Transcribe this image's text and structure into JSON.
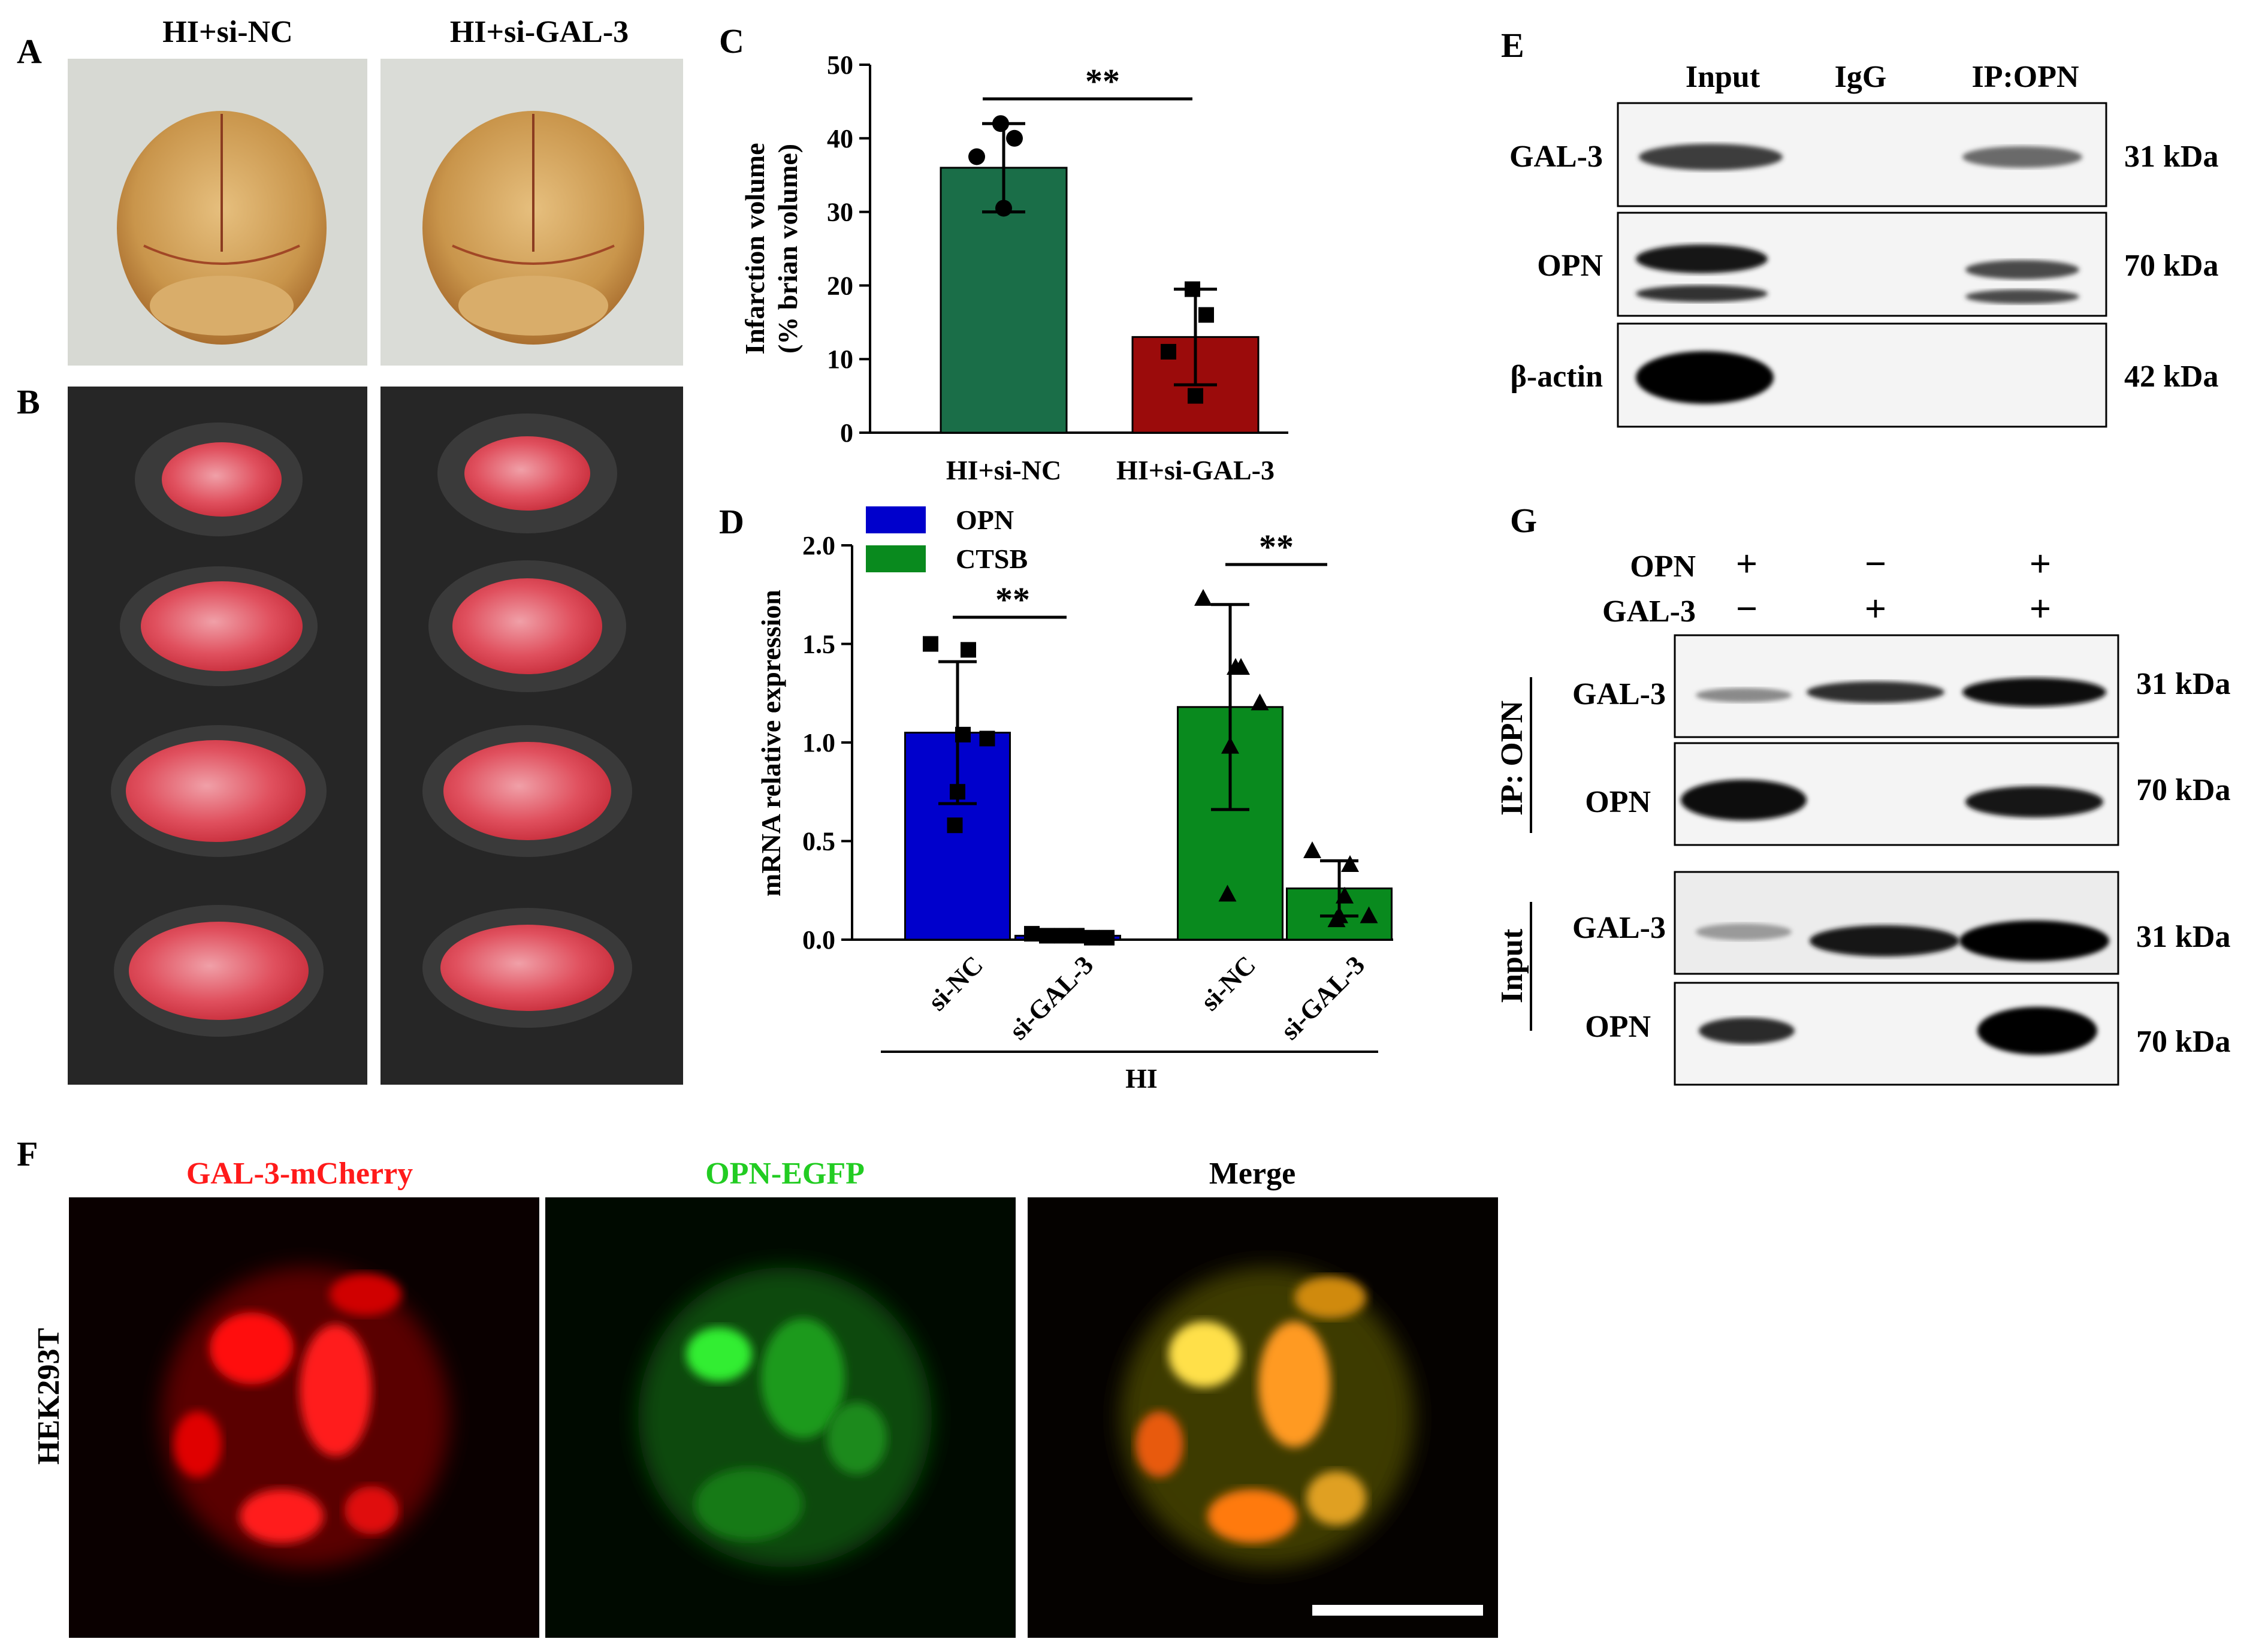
{
  "panel_letters": {
    "a": "A",
    "b": "B",
    "c": "C",
    "d": "D",
    "e": "E",
    "f": "F",
    "g": "G"
  },
  "panel_a": {
    "col1": "HI+si-NC",
    "col2": "HI+si-GAL-3"
  },
  "chart_data": [
    {
      "panel": "C",
      "type": "bar",
      "categories": [
        "HI+si-NC",
        "HI+si-GAL-3"
      ],
      "values": [
        36,
        13
      ],
      "error": [
        6,
        6.5
      ],
      "points": [
        [
          42,
          40,
          37.5,
          30.5
        ],
        [
          19.5,
          16,
          11,
          5
        ]
      ],
      "colors": [
        "#1a6e48",
        "#9b0b0b"
      ],
      "ylabel_line1": "Infarction  volume",
      "ylabel_line2": "(% brian volume)",
      "ylim": [
        0,
        50
      ],
      "yticks": [
        "0",
        "10",
        "20",
        "30",
        "40",
        "50"
      ],
      "significance": "**"
    },
    {
      "panel": "D",
      "type": "bar",
      "categories": [
        "si-NC",
        "si-GAL-3",
        "si-NC",
        "si-GAL-3"
      ],
      "values": [
        1.05,
        0.02,
        1.18,
        0.26
      ],
      "error": [
        0.36,
        0.01,
        0.52,
        0.14
      ],
      "series": [
        {
          "name": "OPN",
          "color": "#0000cc"
        },
        {
          "name": "CTSB",
          "color": "#098a1e"
        }
      ],
      "points": [
        [
          1.5,
          1.47,
          1.04,
          1.02,
          0.75,
          0.58
        ],
        [
          0.03,
          0.02,
          0.02,
          0.02,
          0.01,
          0.01
        ],
        [
          1.73,
          1.38,
          1.38,
          1.2,
          0.98,
          0.23
        ],
        [
          0.45,
          0.38,
          0.22,
          0.12,
          0.12,
          0.1
        ]
      ],
      "ylabel": "mRNA relative expression",
      "ylim": [
        0,
        2
      ],
      "yticks": [
        "0.0",
        "0.5",
        "1.0",
        "1.5",
        "2.0"
      ],
      "group_label": "HI",
      "significance": "**"
    }
  ],
  "panel_e": {
    "lanes": [
      "Input",
      "IgG",
      "IP:OPN"
    ],
    "rows": [
      {
        "label": "GAL-3",
        "size": "31 kDa"
      },
      {
        "label": "OPN",
        "size": "70 kDa"
      },
      {
        "label": "β-actin",
        "size": "42 kDa"
      }
    ]
  },
  "panel_f": {
    "channels": [
      "GAL-3-mCherry",
      "OPN-EGFP",
      "Merge"
    ],
    "channel_colors": [
      "#ff1a1a",
      "#22cc22",
      "#000000"
    ],
    "row_label": "HEK293T"
  },
  "panel_g": {
    "opn_label": "OPN",
    "gal3_label": "GAL-3",
    "opn_signs": [
      "+",
      "−",
      "+"
    ],
    "gal3_signs": [
      "−",
      "+",
      "+"
    ],
    "ip_label": "IP: OPN",
    "input_label": "Input",
    "blots": [
      {
        "label": "GAL-3",
        "size": "31 kDa"
      },
      {
        "label": "OPN",
        "size": "70 kDa"
      },
      {
        "label": "GAL-3",
        "size": "31 kDa"
      },
      {
        "label": "OPN",
        "size": "70 kDa"
      }
    ]
  }
}
